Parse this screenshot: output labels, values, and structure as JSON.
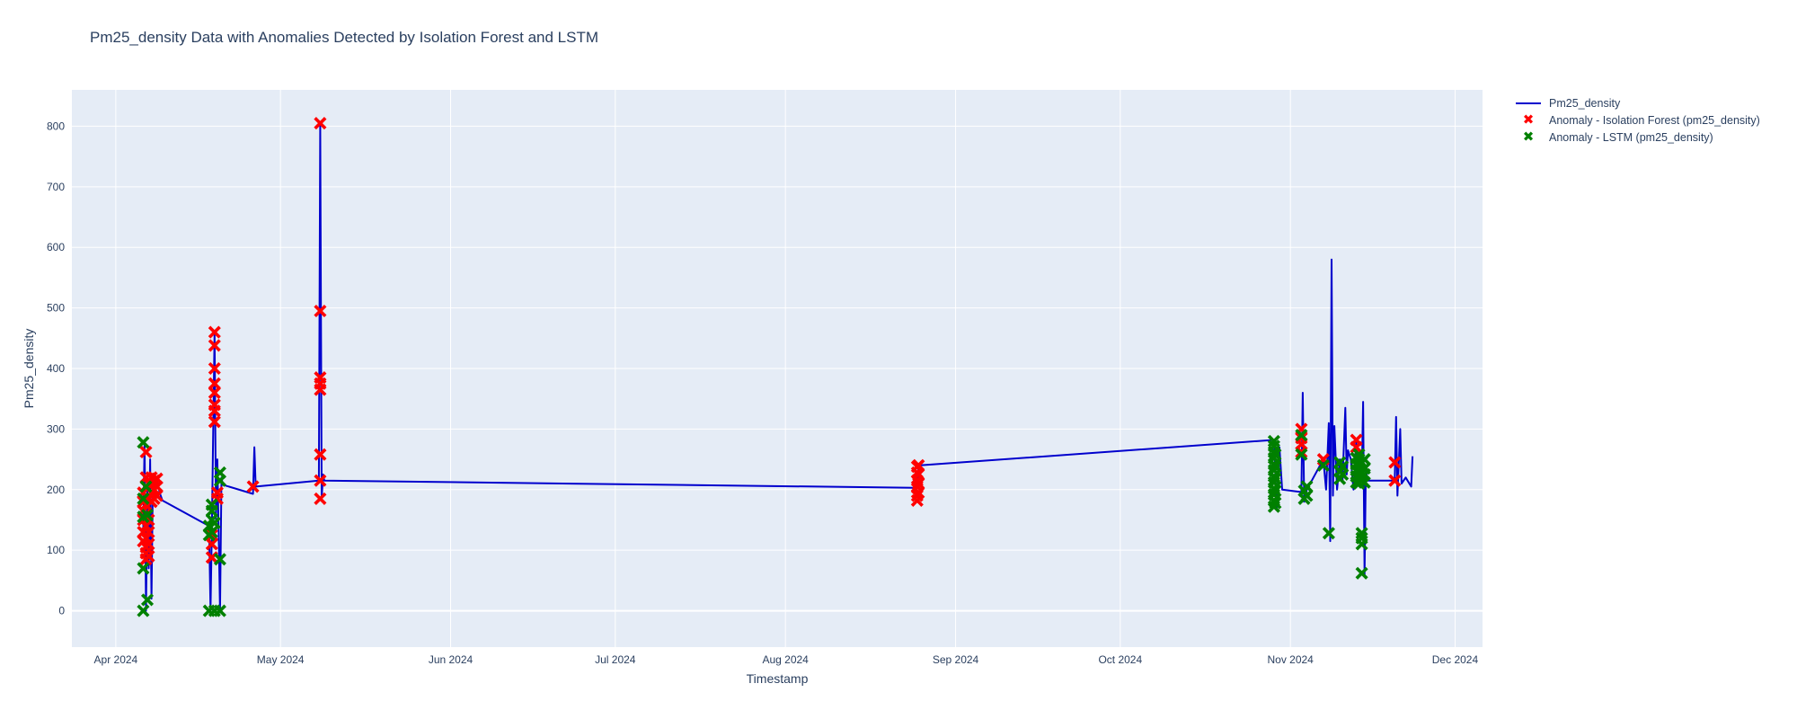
{
  "chart_data": {
    "type": "line",
    "title": "Pm25_density Data with Anomalies Detected by Isolation Forest and LSTM",
    "xlabel": "Timestamp",
    "ylabel": "Pm25_density",
    "xlim": [
      "2024-03-24",
      "2024-12-06"
    ],
    "ylim": [
      -60,
      860
    ],
    "x_ticks": [
      "2024-04-01",
      "2024-05-01",
      "2024-06-01",
      "2024-07-01",
      "2024-08-01",
      "2024-09-01",
      "2024-10-01",
      "2024-11-01",
      "2024-12-01"
    ],
    "x_tick_labels": [
      "Apr 2024",
      "May 2024",
      "Jun 2024",
      "Jul 2024",
      "Aug 2024",
      "Sep 2024",
      "Oct 2024",
      "Nov 2024",
      "Dec 2024"
    ],
    "y_ticks": [
      0,
      100,
      200,
      300,
      400,
      500,
      600,
      700,
      800
    ],
    "y_tick_labels": [
      "0",
      "100",
      "200",
      "300",
      "400",
      "500",
      "600",
      "700",
      "800"
    ],
    "grid": true,
    "legend_position": "top-right-outside",
    "colors": {
      "plot_bg": "#e5ecf6",
      "grid": "#ffffff",
      "line": "#0000cd",
      "isolation_forest": "#ff0000",
      "lstm": "#008000"
    },
    "series": [
      {
        "name": "Pm25_density",
        "kind": "line",
        "points": [
          [
            "2024-04-06",
            130
          ],
          [
            "2024-04-06 06",
            280
          ],
          [
            "2024-04-06 12",
            0
          ],
          [
            "2024-04-06 18",
            200
          ],
          [
            "2024-04-07",
            70
          ],
          [
            "2024-04-07 06",
            250
          ],
          [
            "2024-04-07 12",
            20
          ],
          [
            "2024-04-07 18",
            210
          ],
          [
            "2024-04-08",
            190
          ],
          [
            "2024-04-08 12",
            215
          ],
          [
            "2024-04-09",
            195
          ],
          [
            "2024-04-09 12",
            182
          ],
          [
            "2024-04-18",
            140
          ],
          [
            "2024-04-18 06",
            0
          ],
          [
            "2024-04-18 12",
            135
          ],
          [
            "2024-04-19",
            460
          ],
          [
            "2024-04-19 06",
            150
          ],
          [
            "2024-04-19 12",
            250
          ],
          [
            "2024-04-20",
            0
          ],
          [
            "2024-04-20 06",
            220
          ],
          [
            "2024-04-20 12",
            208
          ],
          [
            "2024-04-26",
            193
          ],
          [
            "2024-04-26 06",
            270
          ],
          [
            "2024-04-26 12",
            205
          ],
          [
            "2024-05-08",
            215
          ],
          [
            "2024-05-08 06",
            805
          ],
          [
            "2024-05-08 12",
            185
          ],
          [
            "2024-05-08 18",
            225
          ],
          [
            "2024-05-09",
            215
          ],
          [
            "2024-08-25",
            203
          ],
          [
            "2024-08-25 06",
            240
          ],
          [
            "2024-08-25 12",
            240
          ],
          [
            "2024-10-29",
            282
          ],
          [
            "2024-10-29 12",
            170
          ],
          [
            "2024-10-30",
            270
          ],
          [
            "2024-10-30 12",
            200
          ],
          [
            "2024-11-03",
            196
          ],
          [
            "2024-11-03 06",
            360
          ],
          [
            "2024-11-03 12",
            180
          ],
          [
            "2024-11-04",
            200
          ],
          [
            "2024-11-07",
            250
          ],
          [
            "2024-11-07 12",
            200
          ],
          [
            "2024-11-08",
            310
          ],
          [
            "2024-11-08 06",
            115
          ],
          [
            "2024-11-08 12",
            580
          ],
          [
            "2024-11-08 18",
            190
          ],
          [
            "2024-11-09",
            305
          ],
          [
            "2024-11-09 12",
            200
          ],
          [
            "2024-11-10",
            250
          ],
          [
            "2024-11-10 12",
            215
          ],
          [
            "2024-11-11",
            335
          ],
          [
            "2024-11-11 06",
            225
          ],
          [
            "2024-11-11 12",
            265
          ],
          [
            "2024-11-12",
            250
          ],
          [
            "2024-11-12 12",
            200
          ],
          [
            "2024-11-13",
            280
          ],
          [
            "2024-11-13 06",
            210
          ],
          [
            "2024-11-13 12",
            255
          ],
          [
            "2024-11-14",
            220
          ],
          [
            "2024-11-14 06",
            345
          ],
          [
            "2024-11-14 12",
            60
          ],
          [
            "2024-11-14 18",
            240
          ],
          [
            "2024-11-15",
            215
          ],
          [
            "2024-11-15 12",
            215
          ],
          [
            "2024-11-20",
            215
          ],
          [
            "2024-11-20 06",
            320
          ],
          [
            "2024-11-20 12",
            190
          ],
          [
            "2024-11-21",
            300
          ],
          [
            "2024-11-21 06",
            210
          ],
          [
            "2024-11-22",
            220
          ],
          [
            "2024-11-23",
            205
          ],
          [
            "2024-11-23 06",
            255
          ]
        ]
      },
      {
        "name": "Anomaly - Isolation Forest (pm25_density)",
        "kind": "markers",
        "marker": "x",
        "points": [
          [
            "2024-04-06",
            115
          ],
          [
            "2024-04-06",
            130
          ],
          [
            "2024-04-06",
            150
          ],
          [
            "2024-04-06",
            165
          ],
          [
            "2024-04-06",
            180
          ],
          [
            "2024-04-06",
            195
          ],
          [
            "2024-04-06 12",
            85
          ],
          [
            "2024-04-06 12",
            95
          ],
          [
            "2024-04-06 12",
            105
          ],
          [
            "2024-04-06 12",
            120
          ],
          [
            "2024-04-06 12",
            140
          ],
          [
            "2024-04-06 12",
            160
          ],
          [
            "2024-04-06 12",
            175
          ],
          [
            "2024-04-06 12",
            205
          ],
          [
            "2024-04-06 12",
            220
          ],
          [
            "2024-04-06 12",
            262
          ],
          [
            "2024-04-07",
            90
          ],
          [
            "2024-04-07",
            110
          ],
          [
            "2024-04-07",
            130
          ],
          [
            "2024-04-07",
            150
          ],
          [
            "2024-04-07",
            185
          ],
          [
            "2024-04-07",
            210
          ],
          [
            "2024-04-07 12",
            180
          ],
          [
            "2024-04-07 12",
            195
          ],
          [
            "2024-04-07 12",
            210
          ],
          [
            "2024-04-07 12",
            220
          ],
          [
            "2024-04-08",
            185
          ],
          [
            "2024-04-08",
            200
          ],
          [
            "2024-04-08",
            215
          ],
          [
            "2024-04-08 12",
            190
          ],
          [
            "2024-04-08 12",
            205
          ],
          [
            "2024-04-08 12",
            218
          ],
          [
            "2024-04-18 12",
            88
          ],
          [
            "2024-04-18 12",
            110
          ],
          [
            "2024-04-18 12",
            125
          ],
          [
            "2024-04-19",
            460
          ],
          [
            "2024-04-19",
            438
          ],
          [
            "2024-04-19",
            400
          ],
          [
            "2024-04-19",
            375
          ],
          [
            "2024-04-19",
            360
          ],
          [
            "2024-04-19",
            340
          ],
          [
            "2024-04-19",
            330
          ],
          [
            "2024-04-19",
            312
          ],
          [
            "2024-04-19 12",
            195
          ],
          [
            "2024-04-19 12",
            185
          ],
          [
            "2024-04-26",
            205
          ],
          [
            "2024-05-08 06",
            805
          ],
          [
            "2024-05-08 06",
            495
          ],
          [
            "2024-05-08 06",
            385
          ],
          [
            "2024-05-08 06",
            375
          ],
          [
            "2024-05-08 06",
            365
          ],
          [
            "2024-05-08 06",
            258
          ],
          [
            "2024-05-08 06",
            215
          ],
          [
            "2024-05-08 06",
            185
          ],
          [
            "2024-08-25",
            182
          ],
          [
            "2024-08-25",
            190
          ],
          [
            "2024-08-25",
            205
          ],
          [
            "2024-08-25",
            215
          ],
          [
            "2024-08-25",
            228
          ],
          [
            "2024-08-25",
            238
          ],
          [
            "2024-08-25 06",
            195
          ],
          [
            "2024-08-25 06",
            210
          ],
          [
            "2024-08-25 06",
            225
          ],
          [
            "2024-08-25 06",
            240
          ],
          [
            "2024-11-03",
            262
          ],
          [
            "2024-11-03",
            275
          ],
          [
            "2024-11-03",
            285
          ],
          [
            "2024-11-03",
            300
          ],
          [
            "2024-11-07",
            250
          ],
          [
            "2024-11-13",
            270
          ],
          [
            "2024-11-13",
            282
          ],
          [
            "2024-11-20",
            215
          ],
          [
            "2024-11-20",
            245
          ]
        ]
      },
      {
        "name": "Anomaly - LSTM (pm25_density)",
        "kind": "markers",
        "marker": "x",
        "points": [
          [
            "2024-04-06",
            0
          ],
          [
            "2024-04-06",
            70
          ],
          [
            "2024-04-06",
            155
          ],
          [
            "2024-04-06",
            185
          ],
          [
            "2024-04-06",
            278
          ],
          [
            "2024-04-06 12",
            205
          ],
          [
            "2024-04-06 18",
            18
          ],
          [
            "2024-04-06 18",
            158
          ],
          [
            "2024-04-18",
            0
          ],
          [
            "2024-04-18",
            125
          ],
          [
            "2024-04-18",
            140
          ],
          [
            "2024-04-18 12",
            130
          ],
          [
            "2024-04-18 12",
            150
          ],
          [
            "2024-04-18 12",
            165
          ],
          [
            "2024-04-18 12",
            175
          ],
          [
            "2024-04-19",
            0
          ],
          [
            "2024-04-19",
            145
          ],
          [
            "2024-04-20",
            0
          ],
          [
            "2024-04-20",
            85
          ],
          [
            "2024-04-20",
            215
          ],
          [
            "2024-04-20",
            228
          ],
          [
            "2024-10-29",
            172
          ],
          [
            "2024-10-29",
            182
          ],
          [
            "2024-10-29",
            192
          ],
          [
            "2024-10-29",
            202
          ],
          [
            "2024-10-29",
            212
          ],
          [
            "2024-10-29",
            222
          ],
          [
            "2024-10-29",
            232
          ],
          [
            "2024-10-29",
            242
          ],
          [
            "2024-10-29",
            252
          ],
          [
            "2024-10-29",
            262
          ],
          [
            "2024-10-29",
            272
          ],
          [
            "2024-10-29",
            280
          ],
          [
            "2024-10-29 06",
            178
          ],
          [
            "2024-10-29 06",
            198
          ],
          [
            "2024-10-29 06",
            218
          ],
          [
            "2024-10-29 06",
            238
          ],
          [
            "2024-10-29 06",
            258
          ],
          [
            "2024-11-03",
            258
          ],
          [
            "2024-11-03",
            290
          ],
          [
            "2024-11-03 12",
            185
          ],
          [
            "2024-11-03 12",
            198
          ],
          [
            "2024-11-04",
            190
          ],
          [
            "2024-11-04",
            205
          ],
          [
            "2024-11-07",
            240
          ],
          [
            "2024-11-08",
            128
          ],
          [
            "2024-11-10",
            218
          ],
          [
            "2024-11-10",
            230
          ],
          [
            "2024-11-10",
            245
          ],
          [
            "2024-11-10 12",
            225
          ],
          [
            "2024-11-10 12",
            238
          ],
          [
            "2024-11-13",
            212
          ],
          [
            "2024-11-13",
            222
          ],
          [
            "2024-11-13",
            232
          ],
          [
            "2024-11-13",
            242
          ],
          [
            "2024-11-13",
            252
          ],
          [
            "2024-11-13 12",
            210
          ],
          [
            "2024-11-13 12",
            220
          ],
          [
            "2024-11-13 12",
            230
          ],
          [
            "2024-11-13 12",
            240
          ],
          [
            "2024-11-13 12",
            250
          ],
          [
            "2024-11-13 12",
            258
          ],
          [
            "2024-11-14",
            62
          ],
          [
            "2024-11-14",
            110
          ],
          [
            "2024-11-14",
            120
          ],
          [
            "2024-11-14",
            128
          ],
          [
            "2024-11-14",
            215
          ],
          [
            "2024-11-14",
            228
          ],
          [
            "2024-11-14",
            245
          ],
          [
            "2024-11-14 12",
            212
          ],
          [
            "2024-11-14 12",
            225
          ],
          [
            "2024-11-14 12",
            235
          ],
          [
            "2024-11-14 12",
            250
          ]
        ]
      }
    ]
  }
}
